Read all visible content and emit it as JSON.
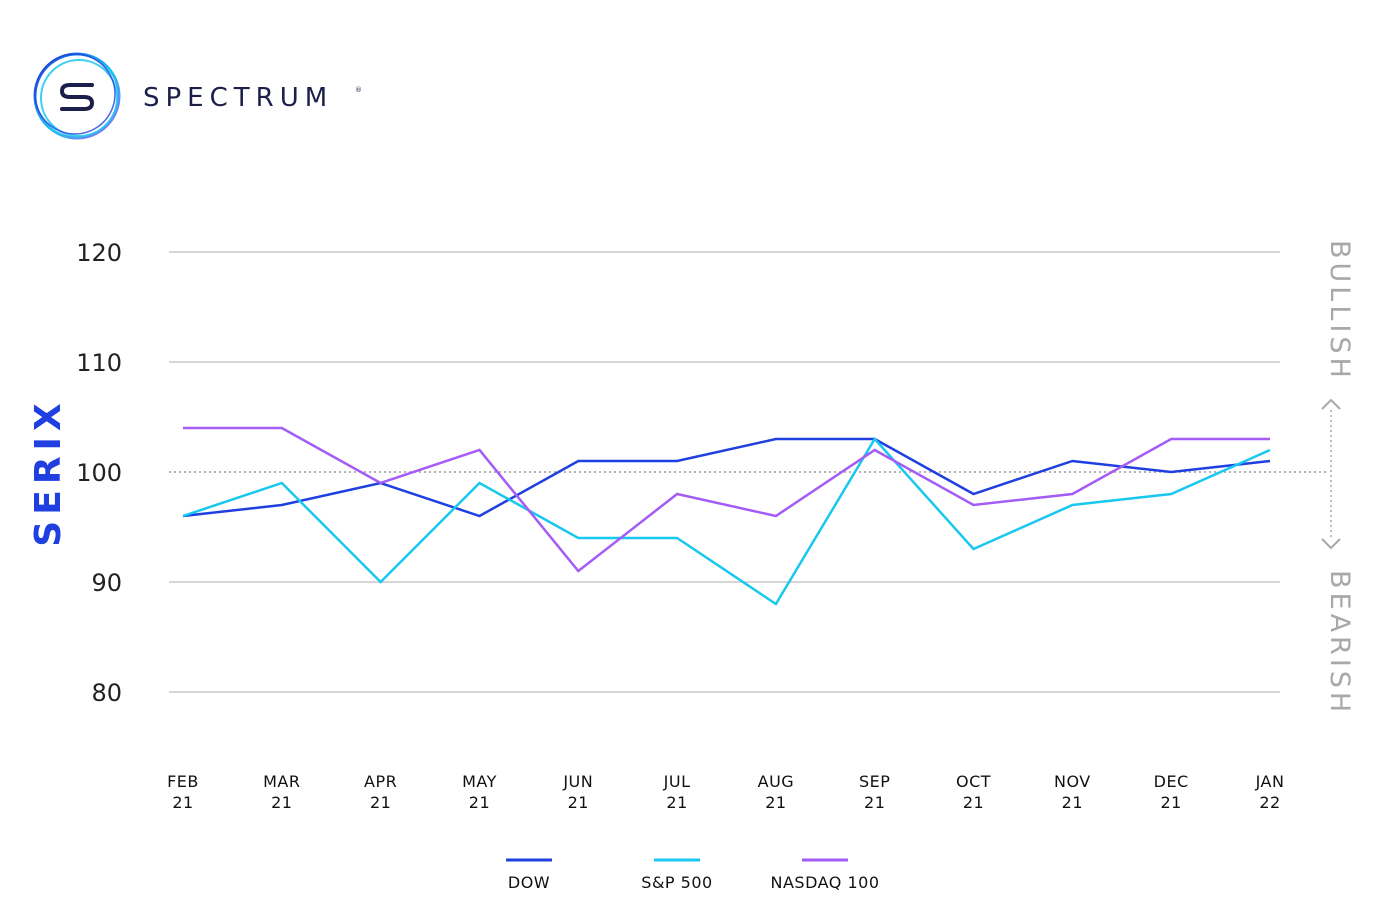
{
  "brand": {
    "name": "SPECTRUM",
    "mark": "®",
    "logo_icon": "spectrum-s-logo-icon"
  },
  "colors": {
    "dow": "#1f3fe0",
    "sp500": "#18c8f0",
    "nasdaq": "#a35cf5",
    "ylabel": "#1f3fe0",
    "grid": "#c8c8c8",
    "reference": "#9a9a9a",
    "side_label": "#a8a8a8"
  },
  "chart_data": {
    "type": "line",
    "title": "",
    "ylabel": "SERIX",
    "xlabel": "",
    "ylim": [
      80,
      120
    ],
    "yticks": [
      "120",
      "110",
      "100",
      "90",
      "80"
    ],
    "categories": [
      [
        "FEB",
        "21"
      ],
      [
        "MAR",
        "21"
      ],
      [
        "APR",
        "21"
      ],
      [
        "MAY",
        "21"
      ],
      [
        "JUN",
        "21"
      ],
      [
        "JUL",
        "21"
      ],
      [
        "AUG",
        "21"
      ],
      [
        "SEP",
        "21"
      ],
      [
        "OCT",
        "21"
      ],
      [
        "NOV",
        "21"
      ],
      [
        "DEC",
        "21"
      ],
      [
        "JAN",
        "22"
      ]
    ],
    "reference_line": 100,
    "grid": true,
    "legend_position": "bottom",
    "side_labels": {
      "upper": "BULLISH",
      "lower": "BEARISH"
    },
    "series": [
      {
        "name": "DOW",
        "color_key": "dow",
        "values": [
          96,
          97,
          99,
          96,
          101,
          101,
          103,
          103,
          98,
          101,
          100,
          101
        ]
      },
      {
        "name": "S&P 500",
        "color_key": "sp500",
        "values": [
          96,
          99,
          90,
          99,
          94,
          94,
          88,
          103,
          93,
          97,
          98,
          102
        ]
      },
      {
        "name": "NASDAQ 100",
        "color_key": "nasdaq",
        "values": [
          104,
          104,
          99,
          102,
          91,
          98,
          96,
          102,
          97,
          98,
          103,
          103
        ]
      }
    ]
  }
}
